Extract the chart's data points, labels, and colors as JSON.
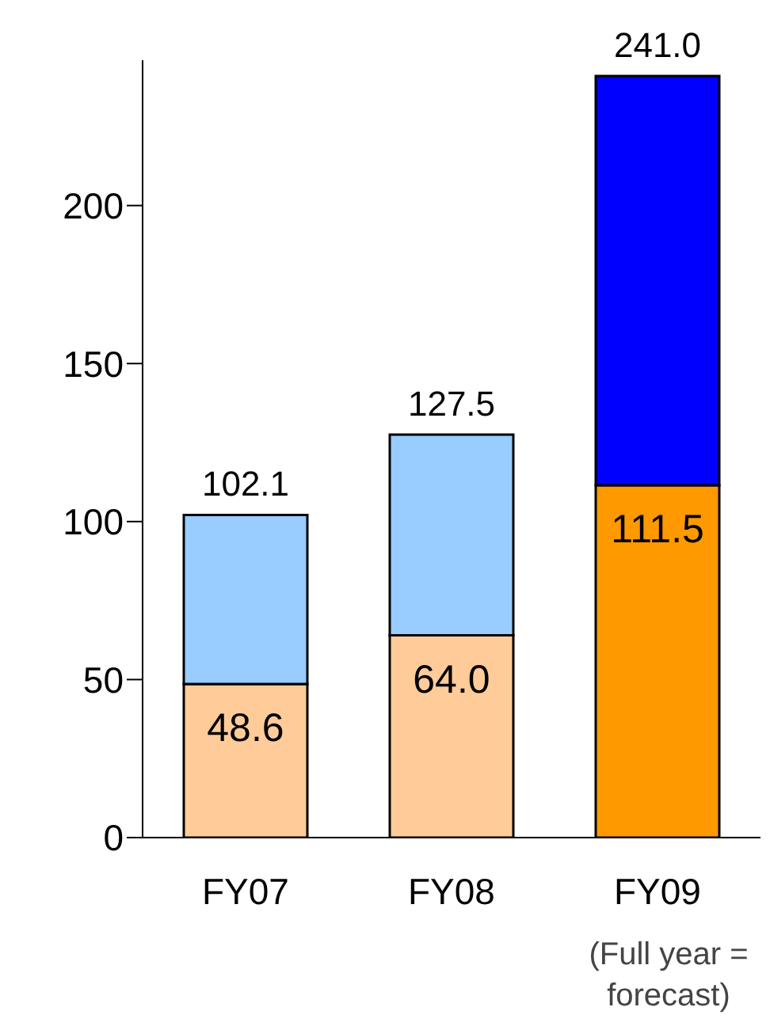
{
  "chart_data": {
    "type": "bar",
    "stacked": true,
    "categories": [
      "FY07",
      "FY08",
      "FY09"
    ],
    "series": [
      {
        "colors": [
          "#ffcc99",
          "#ffcc99",
          "#ff9900"
        ],
        "values": [
          48.6,
          64.0,
          111.5
        ],
        "value_labels": [
          "48.6",
          "64.0",
          "111.5"
        ]
      },
      {
        "colors": [
          "#99ccff",
          "#99ccff",
          "#0000ff"
        ],
        "values": [
          53.5,
          63.5,
          129.5
        ]
      }
    ],
    "totals": [
      "102.1",
      "127.5",
      "241.0"
    ],
    "ylim": [
      0,
      246
    ],
    "yticks": [
      0,
      50,
      100,
      150,
      200
    ],
    "grid": false,
    "legend": false,
    "annotations": [
      "(Full year = forecast)"
    ]
  }
}
